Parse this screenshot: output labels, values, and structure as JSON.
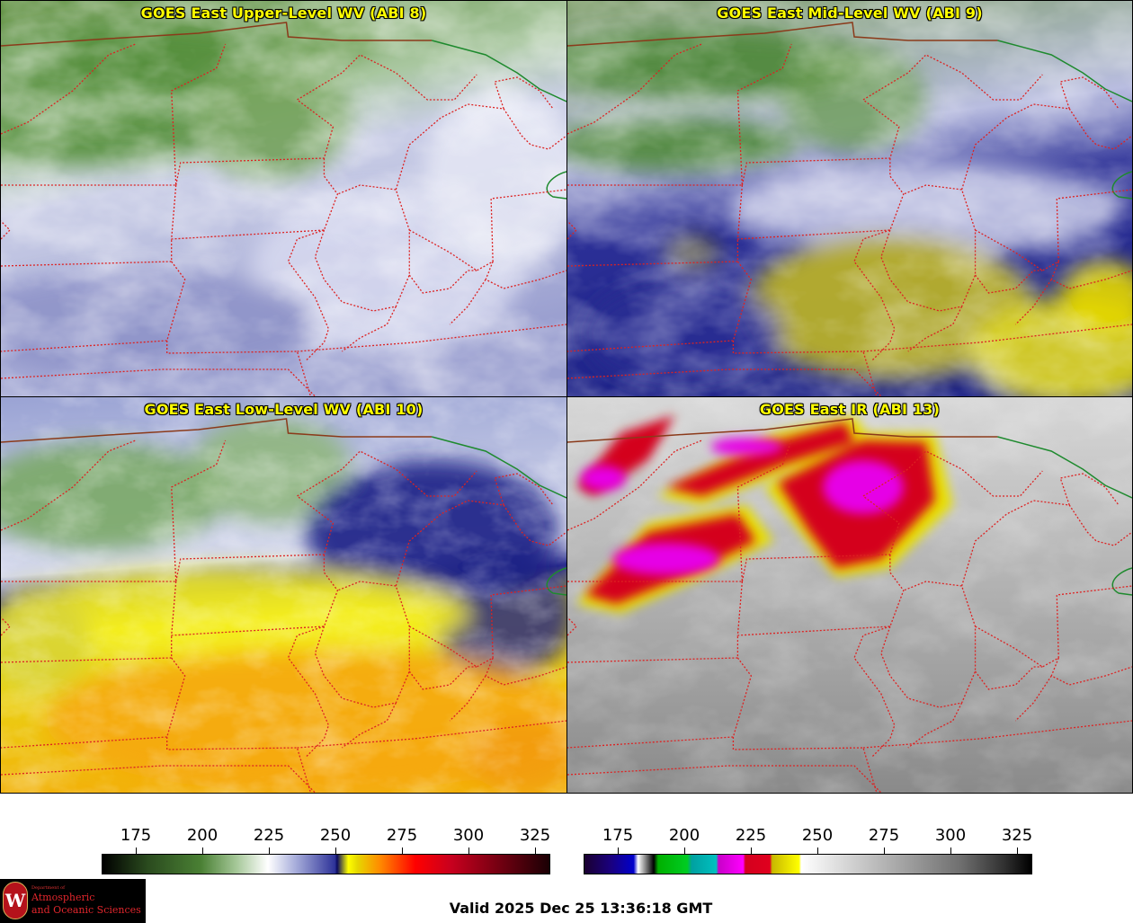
{
  "panels": {
    "upper": {
      "title": "GOES East Upper-Level WV (ABI 8)"
    },
    "mid": {
      "title": "GOES East Mid-Level WV (ABI 9)"
    },
    "low": {
      "title": "GOES East Low-Level WV (ABI 10)"
    },
    "ir": {
      "title": "GOES East IR (ABI 13)"
    }
  },
  "colorbars": {
    "wv": {
      "ticks": [
        "175",
        "200",
        "225",
        "250",
        "275",
        "300",
        "325"
      ]
    },
    "ir": {
      "ticks": [
        "175",
        "200",
        "225",
        "250",
        "275",
        "300",
        "325"
      ]
    }
  },
  "logo": {
    "initial": "W",
    "line1": "Department of",
    "line2": "Atmospheric",
    "line3": "and Oceanic Sciences"
  },
  "valid_time": "Valid 2025 Dec 25 13:36:18 GMT",
  "colors": {
    "title": "#ffff00",
    "state_borders": "#dd2222",
    "intl_border": "#8b3a1a",
    "coast": "#1e8a2e"
  }
}
